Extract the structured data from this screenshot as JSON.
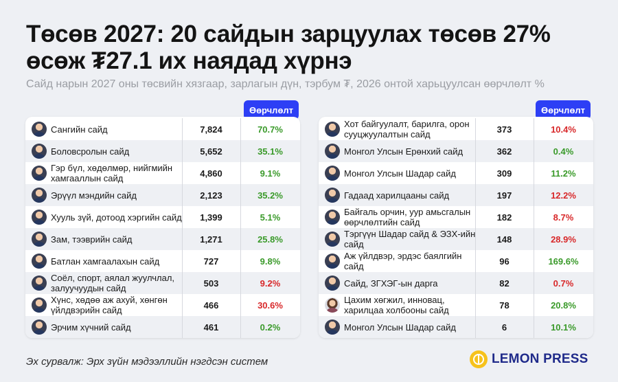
{
  "title": "Төсөв 2027: 20 сайдын зарцуулах төсөв 27% өсөж ₮27.1 их наядад хүрнэ",
  "subtitle": "Сайд нарын 2027 оны төсвийн хязгаар, зарлагын дүн, тэрбум ₮, 2026 онтой харьцуулсан өөрчлөлт %",
  "column_header": "Өөрчлөлт",
  "left_rows": [
    {
      "name": "Сангийн сайд",
      "value": "7,824",
      "change": "70.7%",
      "dir": "pos",
      "avatar": "m"
    },
    {
      "name": "Боловсролын сайд",
      "value": "5,652",
      "change": "35.1%",
      "dir": "pos",
      "avatar": "m"
    },
    {
      "name": "Гэр бүл, хөдөлмөр, нийгмийн хамгааллын сайд",
      "value": "4,860",
      "change": "9.1%",
      "dir": "pos",
      "avatar": "m"
    },
    {
      "name": "Эрүүл мэндийн сайд",
      "value": "2,123",
      "change": "35.2%",
      "dir": "pos",
      "avatar": "m"
    },
    {
      "name": "Хууль зүй, дотоод хэргийн сайд",
      "value": "1,399",
      "change": "5.1%",
      "dir": "pos",
      "avatar": "m"
    },
    {
      "name": "Зам, тээврийн сайд",
      "value": "1,271",
      "change": "25.8%",
      "dir": "pos",
      "avatar": "m"
    },
    {
      "name": "Батлан хамгаалахын сайд",
      "value": "727",
      "change": "9.8%",
      "dir": "pos",
      "avatar": "m"
    },
    {
      "name": "Соёл, спорт, аялал жуулчлал, залуучуудын сайд",
      "value": "503",
      "change": "9.2%",
      "dir": "neg",
      "avatar": "m"
    },
    {
      "name": "Хүнс, хөдөө аж ахуй, хөнгөн үйлдвэрийн сайд",
      "value": "466",
      "change": "30.6%",
      "dir": "neg",
      "avatar": "m"
    },
    {
      "name": "Эрчим хүчний сайд",
      "value": "461",
      "change": "0.2%",
      "dir": "pos",
      "avatar": "m"
    }
  ],
  "right_rows": [
    {
      "name": "Хот байгуулалт, барилга, орон сууцжуулалтын сайд",
      "value": "373",
      "change": "10.4%",
      "dir": "neg",
      "avatar": "m"
    },
    {
      "name": "Монгол Улсын Ерөнхий сайд",
      "value": "362",
      "change": "0.4%",
      "dir": "pos",
      "avatar": "m"
    },
    {
      "name": "Монгол Улсын Шадар сайд",
      "value": "309",
      "change": "11.2%",
      "dir": "pos",
      "avatar": "m"
    },
    {
      "name": "Гадаад харилцааны сайд",
      "value": "197",
      "change": "12.2%",
      "dir": "neg",
      "avatar": "m"
    },
    {
      "name": "Байгаль орчин, уур амьсгалын өөрчлөлтийн сайд",
      "value": "182",
      "change": "8.7%",
      "dir": "neg",
      "avatar": "m"
    },
    {
      "name": "Тэргүүн Шадар сайд & ЭЗХ-ийн сайд",
      "value": "148",
      "change": "28.9%",
      "dir": "neg",
      "avatar": "m"
    },
    {
      "name": "Аж үйлдвэр, эрдэс баялгийн сайд",
      "value": "96",
      "change": "169.6%",
      "dir": "pos",
      "avatar": "m"
    },
    {
      "name": "Сайд, ЗГХЭГ-ын дарга",
      "value": "82",
      "change": "0.7%",
      "dir": "neg",
      "avatar": "m"
    },
    {
      "name": "Цахим хөгжил, инновац, харилцаа холбооны сайд",
      "value": "78",
      "change": "20.8%",
      "dir": "pos",
      "avatar": "f"
    },
    {
      "name": "Монгол Улсын Шадар сайд",
      "value": "6",
      "change": "10.1%",
      "dir": "pos",
      "avatar": "m"
    }
  ],
  "source": "Эх сурвалж: Эрх зүйн мэдээллийн нэгдсэн систем",
  "logo": "LEMON PRESS",
  "colors": {
    "positive": "#3a9a2a",
    "negative": "#d8282a",
    "accent": "#2d3ff5"
  }
}
